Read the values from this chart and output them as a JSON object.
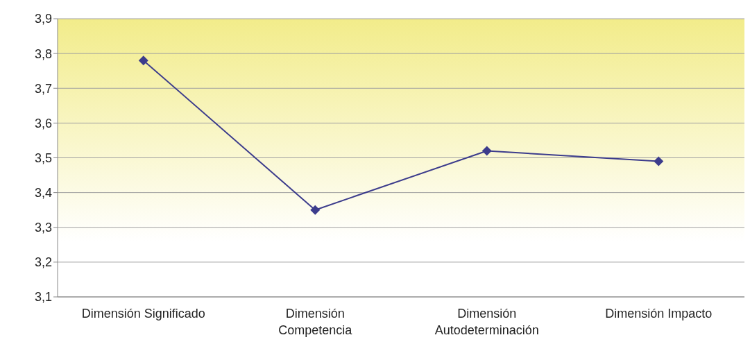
{
  "chart_data": {
    "type": "line",
    "categories": [
      "Dimensión Significado",
      "Dimensión\nCompetencia",
      "Dimensión\nAutodeterminación",
      "Dimensión Impacto"
    ],
    "series": [
      {
        "color": "#3c3c8c",
        "values": [
          3.78,
          3.35,
          3.52,
          3.49
        ]
      }
    ],
    "ylim": [
      3.1,
      3.9
    ],
    "yticks": [
      {
        "value": 3.1,
        "label": "3,1"
      },
      {
        "value": 3.2,
        "label": "3,2"
      },
      {
        "value": 3.3,
        "label": "3,3"
      },
      {
        "value": 3.4,
        "label": "3,4"
      },
      {
        "value": 3.5,
        "label": "3,5"
      },
      {
        "value": 3.6,
        "label": "3,6"
      },
      {
        "value": 3.7,
        "label": "3,7"
      },
      {
        "value": 3.8,
        "label": "3,8"
      },
      {
        "value": 3.9,
        "label": "3,9"
      }
    ],
    "grid": "y",
    "marker": "diamond",
    "line_style": "solid",
    "legend": false
  }
}
